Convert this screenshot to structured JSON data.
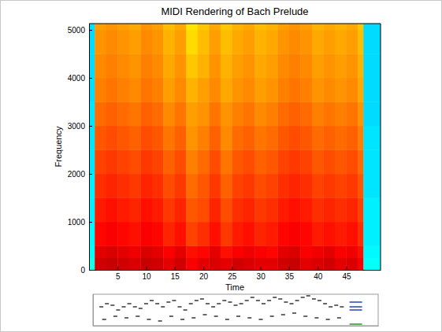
{
  "chart_data": [
    {
      "type": "heatmap",
      "title": "MIDI Rendering of Bach Prelude",
      "x_label": "Time",
      "y_label": "Frequency",
      "xlim": [
        0,
        51
      ],
      "ylim": [
        0,
        5130
      ],
      "xticks": [
        5,
        10,
        15,
        20,
        25,
        30,
        35,
        40,
        45
      ],
      "yticks": [
        0,
        1000,
        2000,
        3000,
        4000,
        5000
      ],
      "zlim": [
        0,
        1
      ],
      "x_edges": [
        0,
        1,
        3,
        5,
        7,
        9,
        11,
        13,
        15,
        17,
        19,
        21,
        23,
        25,
        27,
        29,
        31,
        33,
        35,
        37,
        39,
        41,
        43,
        45,
        47,
        48,
        51
      ],
      "y_edges": [
        0,
        250,
        500,
        1000,
        1500,
        2000,
        2500,
        3000,
        3500,
        4000,
        4500,
        5000,
        5500
      ],
      "cells": [
        [
          0.4,
          0.92,
          0.93,
          0.92,
          0.91,
          0.93,
          0.92,
          0.9,
          0.92,
          0.88,
          0.9,
          0.91,
          0.9,
          0.92,
          0.91,
          0.9,
          0.9,
          0.92,
          0.93,
          0.9,
          0.91,
          0.92,
          0.9,
          0.91,
          0.88,
          0.38
        ],
        [
          0.38,
          0.9,
          0.91,
          0.9,
          0.89,
          0.91,
          0.9,
          0.88,
          0.9,
          0.86,
          0.87,
          0.9,
          0.86,
          0.88,
          0.89,
          0.88,
          0.87,
          0.9,
          0.91,
          0.88,
          0.89,
          0.9,
          0.88,
          0.89,
          0.86,
          0.37
        ],
        [
          0.37,
          0.87,
          0.88,
          0.87,
          0.86,
          0.88,
          0.87,
          0.84,
          0.86,
          0.81,
          0.83,
          0.86,
          0.82,
          0.85,
          0.86,
          0.84,
          0.85,
          0.87,
          0.88,
          0.87,
          0.85,
          0.86,
          0.85,
          0.86,
          0.83,
          0.36
        ],
        [
          0.36,
          0.85,
          0.86,
          0.85,
          0.84,
          0.86,
          0.85,
          0.82,
          0.84,
          0.79,
          0.8,
          0.84,
          0.8,
          0.83,
          0.84,
          0.82,
          0.83,
          0.85,
          0.86,
          0.85,
          0.83,
          0.84,
          0.83,
          0.84,
          0.81,
          0.36
        ],
        [
          0.36,
          0.83,
          0.84,
          0.83,
          0.82,
          0.84,
          0.83,
          0.8,
          0.82,
          0.77,
          0.79,
          0.82,
          0.78,
          0.81,
          0.82,
          0.8,
          0.81,
          0.83,
          0.84,
          0.83,
          0.81,
          0.82,
          0.81,
          0.82,
          0.79,
          0.35
        ],
        [
          0.35,
          0.81,
          0.82,
          0.81,
          0.8,
          0.82,
          0.81,
          0.78,
          0.8,
          0.75,
          0.77,
          0.8,
          0.76,
          0.79,
          0.8,
          0.78,
          0.79,
          0.81,
          0.82,
          0.81,
          0.79,
          0.8,
          0.79,
          0.8,
          0.77,
          0.35
        ],
        [
          0.35,
          0.79,
          0.8,
          0.79,
          0.78,
          0.8,
          0.79,
          0.76,
          0.78,
          0.73,
          0.75,
          0.78,
          0.74,
          0.77,
          0.78,
          0.76,
          0.77,
          0.79,
          0.8,
          0.79,
          0.77,
          0.78,
          0.77,
          0.78,
          0.75,
          0.35
        ],
        [
          0.35,
          0.77,
          0.78,
          0.77,
          0.76,
          0.78,
          0.77,
          0.74,
          0.76,
          0.72,
          0.73,
          0.76,
          0.73,
          0.75,
          0.76,
          0.74,
          0.75,
          0.77,
          0.78,
          0.77,
          0.75,
          0.76,
          0.75,
          0.76,
          0.73,
          0.34
        ],
        [
          0.34,
          0.75,
          0.76,
          0.75,
          0.74,
          0.76,
          0.75,
          0.72,
          0.74,
          0.7,
          0.72,
          0.74,
          0.71,
          0.73,
          0.74,
          0.72,
          0.73,
          0.75,
          0.76,
          0.75,
          0.73,
          0.74,
          0.73,
          0.74,
          0.71,
          0.34
        ],
        [
          0.34,
          0.74,
          0.75,
          0.74,
          0.73,
          0.75,
          0.74,
          0.71,
          0.73,
          0.68,
          0.7,
          0.73,
          0.7,
          0.72,
          0.73,
          0.71,
          0.72,
          0.74,
          0.75,
          0.74,
          0.72,
          0.73,
          0.72,
          0.73,
          0.7,
          0.34
        ],
        [
          0.34,
          0.73,
          0.74,
          0.73,
          0.72,
          0.74,
          0.73,
          0.7,
          0.72,
          0.66,
          0.69,
          0.72,
          0.69,
          0.71,
          0.72,
          0.7,
          0.71,
          0.73,
          0.74,
          0.73,
          0.71,
          0.72,
          0.71,
          0.72,
          0.69,
          0.34
        ],
        [
          0.34,
          0.72,
          0.73,
          0.72,
          0.71,
          0.73,
          0.72,
          0.69,
          0.71,
          0.65,
          0.68,
          0.71,
          0.68,
          0.7,
          0.71,
          0.69,
          0.7,
          0.72,
          0.73,
          0.72,
          0.7,
          0.71,
          0.7,
          0.71,
          0.68,
          0.34
        ]
      ]
    },
    {
      "type": "scatter",
      "tick_labels": false,
      "xlim": [
        0,
        51
      ],
      "ylim": [
        0,
        10
      ],
      "series": [
        {
          "color": "#404040",
          "marker": "dash",
          "x": [
            1.5,
            2.5,
            3.5,
            4.5,
            5.5,
            6.5,
            7.5,
            8.5,
            9.5,
            10.5,
            11.5,
            12.5,
            13.5,
            14.5,
            15.5,
            16.5,
            17.5,
            18.5,
            19.5,
            20.5,
            21.5,
            22.5,
            23.5,
            24.5,
            25.5,
            26.5,
            27.5,
            28.5,
            29.5,
            30.5,
            31.5,
            32.5,
            33.5,
            34.5,
            35.5,
            36.5,
            37.5,
            38.5,
            39.5,
            40.5,
            41.5,
            42.5,
            43.5,
            44.5
          ],
          "values": [
            6,
            7,
            6.5,
            5,
            6,
            7,
            6,
            5.5,
            7,
            8,
            7,
            6,
            7.5,
            8,
            6,
            5,
            7,
            8,
            8.5,
            7,
            6,
            7,
            8,
            7.5,
            6.5,
            7,
            8,
            9,
            8,
            7,
            8,
            9,
            8.5,
            7.5,
            7,
            8,
            9,
            9.5,
            8.5,
            8,
            7,
            6,
            6.5,
            6
          ]
        },
        {
          "color": "#404040",
          "marker": "dash",
          "x": [
            2,
            4,
            6,
            8,
            10,
            12,
            14,
            16,
            18,
            20,
            22,
            24,
            26,
            28,
            30,
            32,
            34,
            36,
            38,
            40,
            42,
            44
          ],
          "values": [
            2,
            3,
            2.5,
            3,
            2,
            1.5,
            3,
            2,
            2.5,
            3.5,
            3,
            2,
            3,
            2.5,
            2,
            3,
            3.5,
            4,
            3,
            2.5,
            2,
            2.5
          ]
        },
        {
          "color": "#3050c0",
          "marker": "long_dash",
          "x": [
            47,
            47,
            47
          ],
          "values": [
            5,
            6,
            7.5
          ]
        },
        {
          "color": "#30a030",
          "marker": "long_dash",
          "x": [
            47
          ],
          "values": [
            0.5
          ]
        }
      ]
    }
  ]
}
